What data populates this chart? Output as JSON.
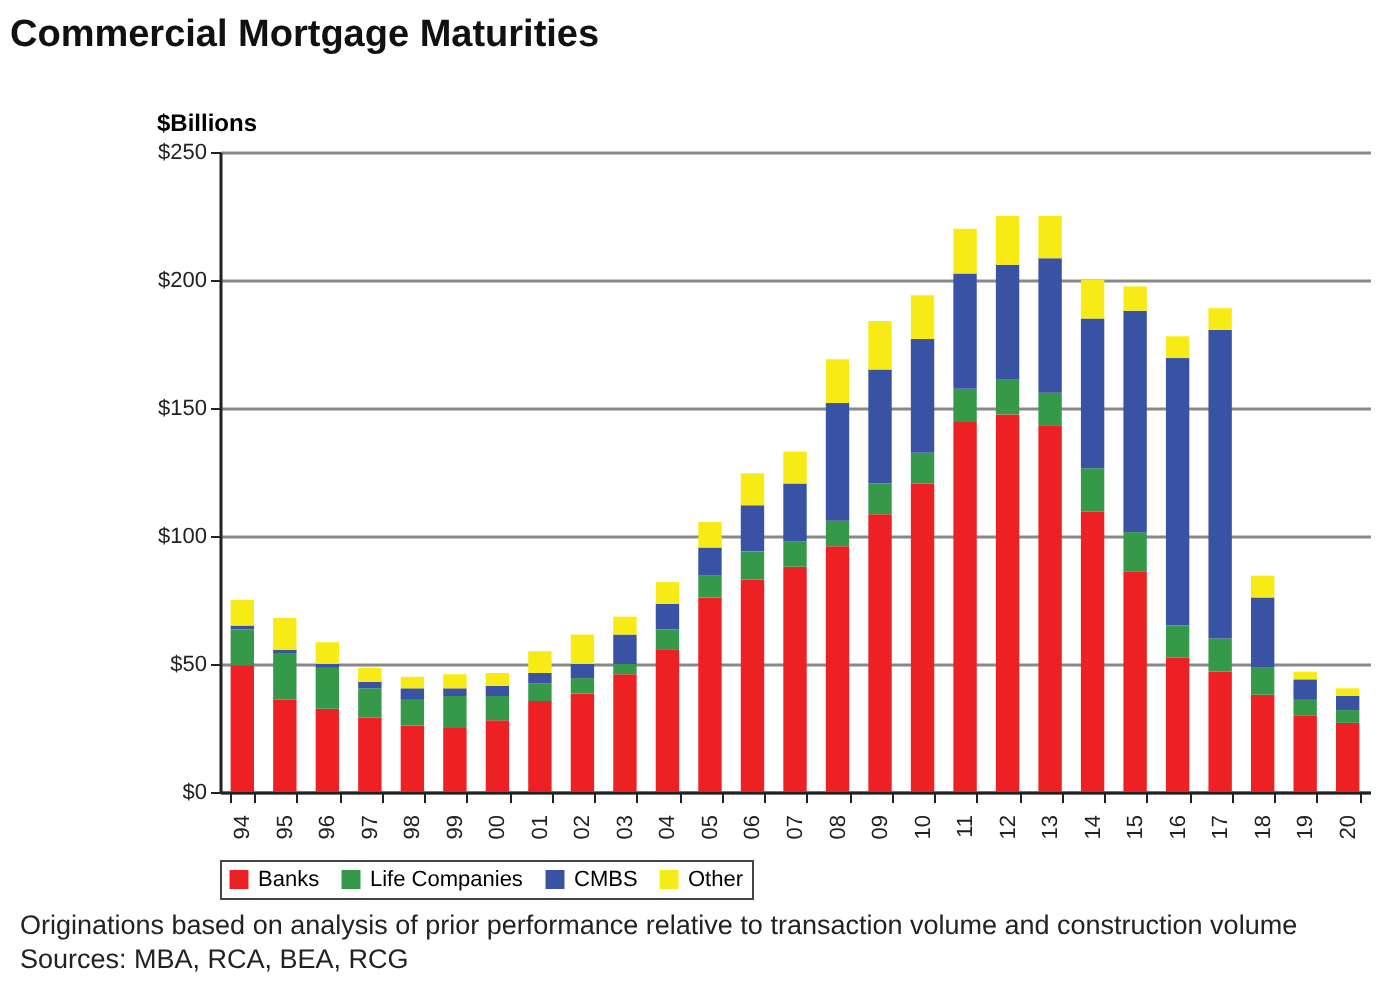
{
  "chart_data": {
    "type": "bar",
    "title": "Commercial Mortgage Maturities",
    "ylabel": "$Billions",
    "categories": [
      "94",
      "95",
      "96",
      "97",
      "98",
      "99",
      "00",
      "01",
      "02",
      "03",
      "04",
      "05",
      "06",
      "07",
      "08",
      "09",
      "10",
      "11",
      "12",
      "13",
      "14",
      "15",
      "16",
      "17",
      "18",
      "19",
      "20"
    ],
    "stacked": true,
    "series": [
      {
        "name": "Banks",
        "color": "#ed2024",
        "values": [
          49.5,
          36,
          32.5,
          29,
          26,
          25,
          28,
          35.5,
          38.5,
          46,
          55.5,
          76,
          83,
          88,
          96,
          108.5,
          120.5,
          144.5,
          147.5,
          143,
          109.5,
          86,
          52.5,
          47,
          38,
          30,
          27
        ]
      },
      {
        "name": "Life Companies",
        "color": "#36994a",
        "values": [
          14,
          18,
          16,
          11.5,
          10,
          12.5,
          9.5,
          7,
          6,
          4,
          8,
          8.5,
          11,
          10,
          10,
          12,
          12,
          13,
          13.5,
          13,
          17,
          15.5,
          12.5,
          13,
          10.5,
          6,
          5
        ]
      },
      {
        "name": "CMBS",
        "color": "#3a52a4",
        "values": [
          1.5,
          1.5,
          1.5,
          2.5,
          4.5,
          3,
          4,
          4,
          5.5,
          11.5,
          10,
          11,
          18,
          22.5,
          46,
          44.5,
          44.5,
          45,
          45,
          52.5,
          58.5,
          86.5,
          104.5,
          120.5,
          27.5,
          8,
          5.5
        ]
      },
      {
        "name": "Other",
        "color": "#f6eb14",
        "values": [
          10,
          12.5,
          8.5,
          5.5,
          4.5,
          5.5,
          5,
          8.5,
          11.5,
          7,
          8.5,
          10,
          12.5,
          12.5,
          17,
          19,
          17,
          17.5,
          19,
          16.5,
          15,
          9.5,
          8.5,
          8.5,
          8.5,
          3,
          3
        ]
      }
    ],
    "ylim": [
      0,
      250
    ],
    "yticks": [
      {
        "value": 0,
        "label": "$0"
      },
      {
        "value": 50,
        "label": "$50"
      },
      {
        "value": 100,
        "label": "$100"
      },
      {
        "value": 150,
        "label": "$150"
      },
      {
        "value": 200,
        "label": "$200"
      },
      {
        "value": 250,
        "label": "$250"
      }
    ],
    "grid": "y",
    "legend": "bottom",
    "annotations": [
      "Originations based on analysis of prior performance relative to transaction volume and construction volume",
      "Sources: MBA, RCA, BEA, RCG"
    ]
  }
}
